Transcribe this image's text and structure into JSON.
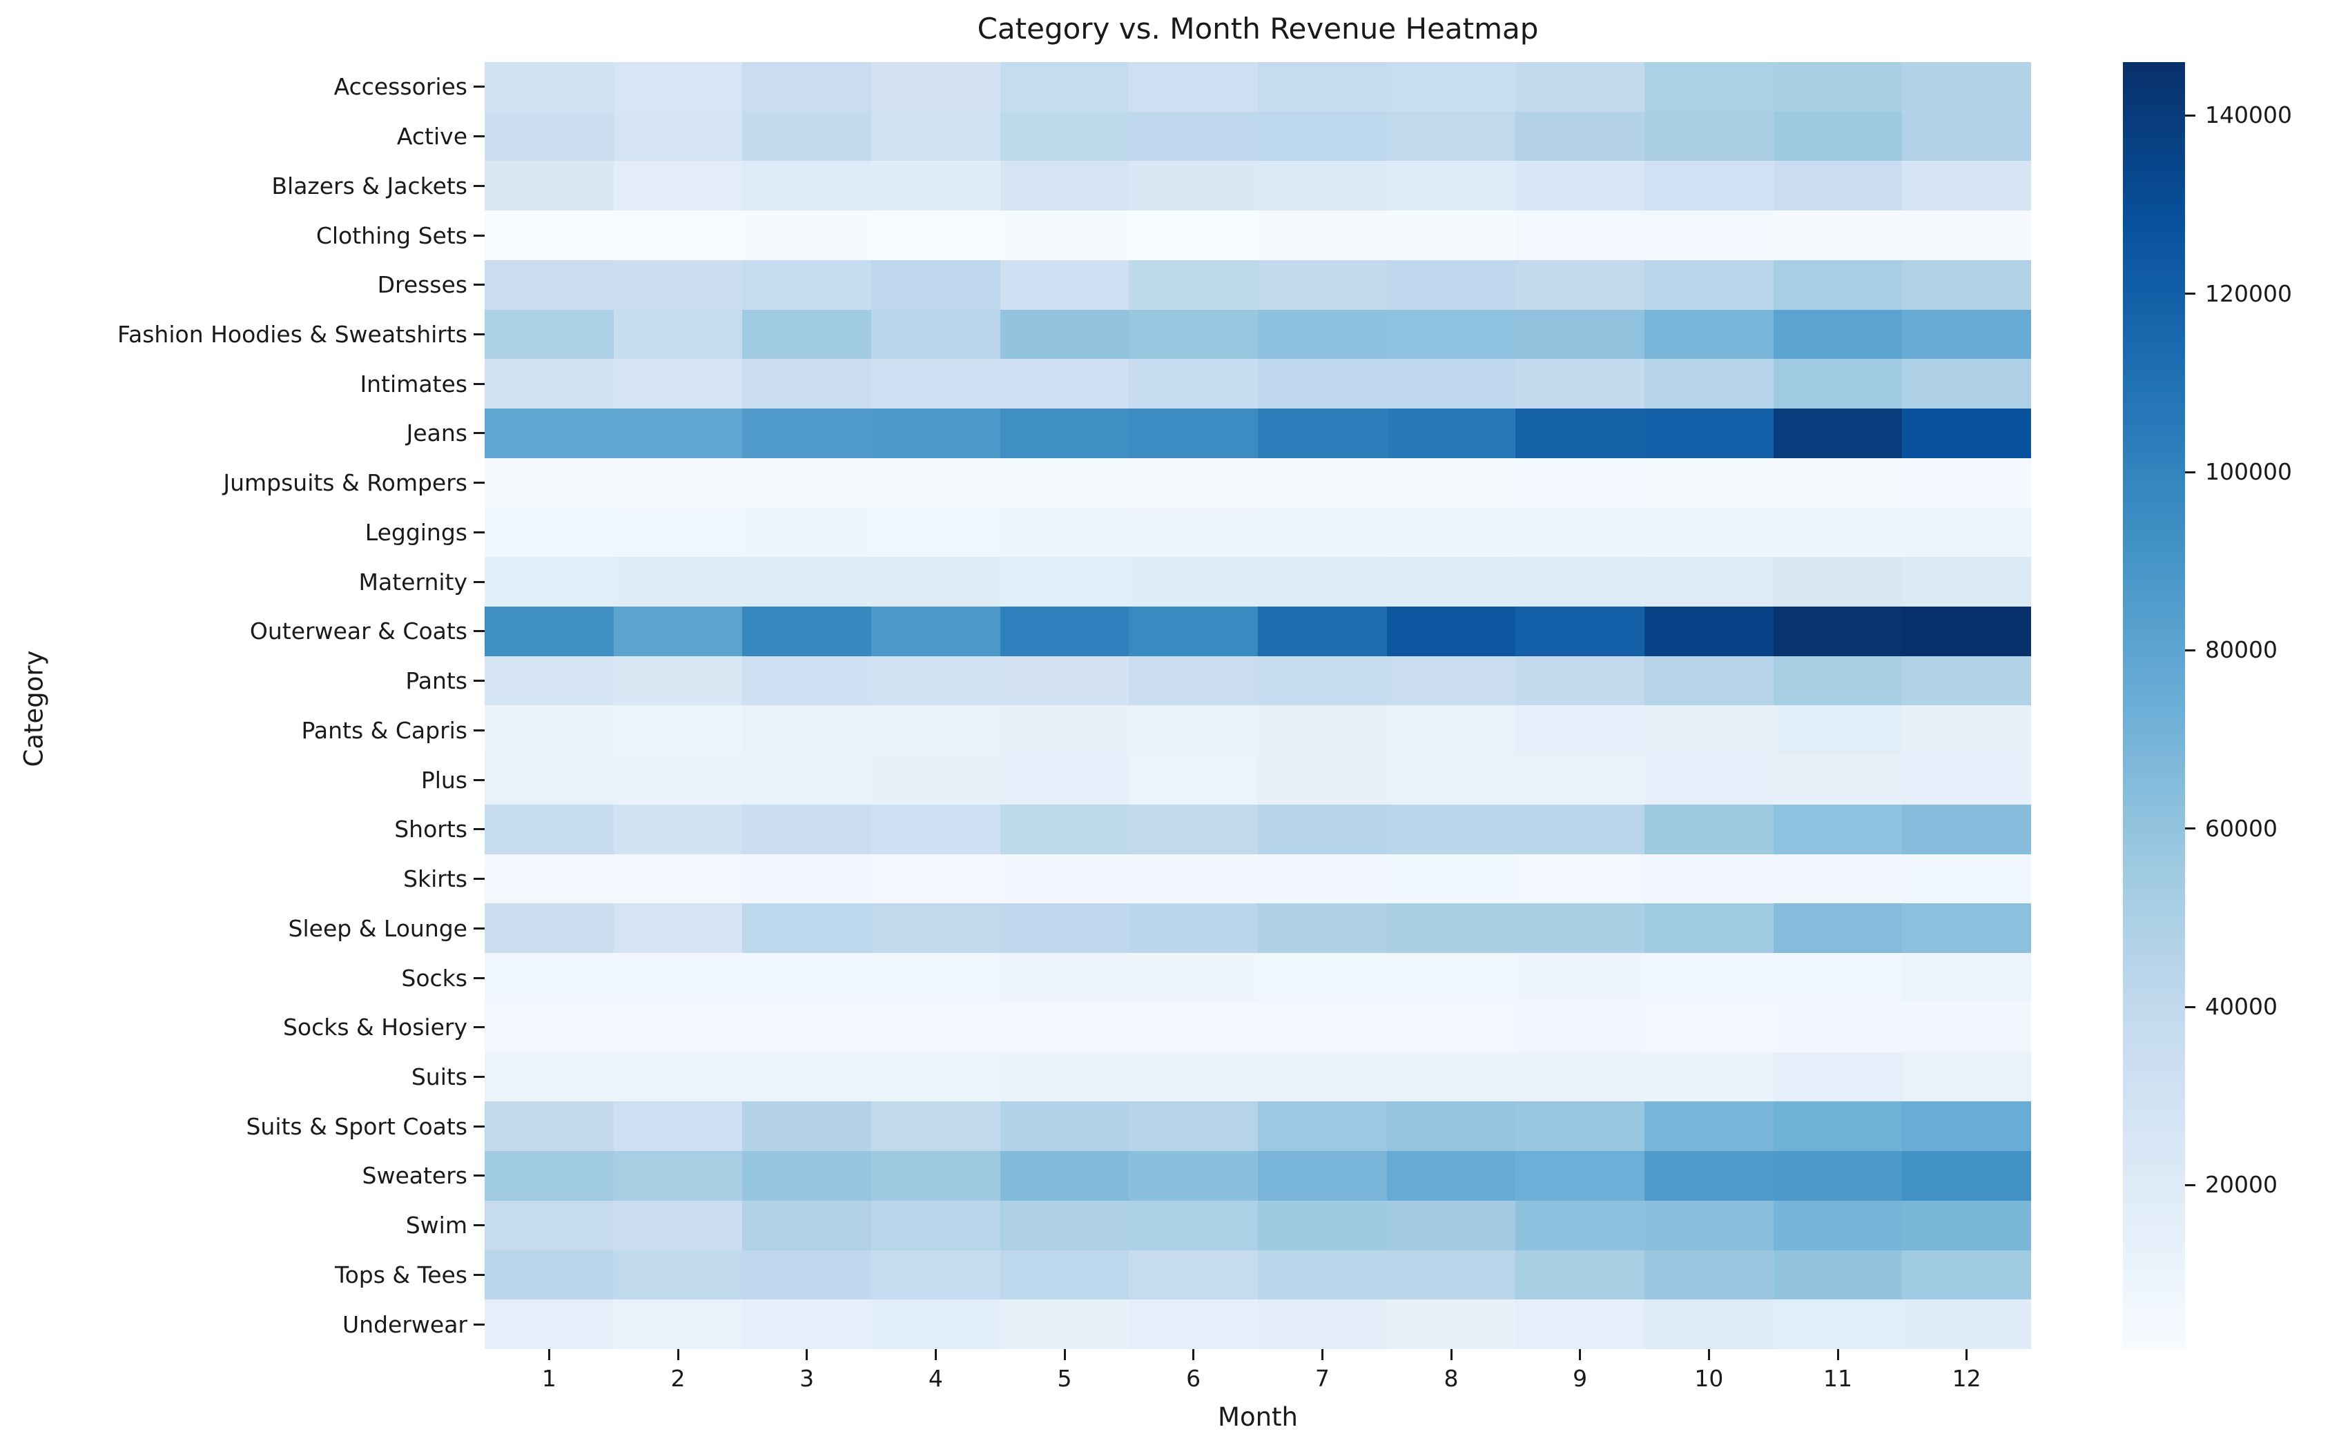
{
  "figure": {
    "text_color": "#1a1a1a",
    "background": "#ffffff"
  },
  "chart_data": {
    "type": "heatmap",
    "title": "Category vs. Month Revenue Heatmap",
    "xlabel": "Month",
    "ylabel": "Category",
    "colormap": "Blues",
    "colormap_anchors": [
      "#f7fbff",
      "#deebf7",
      "#c6dbef",
      "#9ecae1",
      "#6baed6",
      "#4292c6",
      "#2171b5",
      "#08519c",
      "#08306b"
    ],
    "grid": false,
    "legend_position": "right-colorbar",
    "colorbar_ticks": [
      20000,
      40000,
      60000,
      80000,
      100000,
      120000,
      140000
    ],
    "vmin": 1600,
    "vmax": 146000,
    "x": [
      1,
      2,
      3,
      4,
      5,
      6,
      7,
      8,
      9,
      10,
      11,
      12
    ],
    "categories": [
      "Accessories",
      "Active",
      "Blazers & Jackets",
      "Clothing Sets",
      "Dresses",
      "Fashion Hoodies & Sweatshirts",
      "Intimates",
      "Jeans",
      "Jumpsuits & Rompers",
      "Leggings",
      "Maternity",
      "Outerwear & Coats",
      "Pants",
      "Pants & Capris",
      "Plus",
      "Shorts",
      "Skirts",
      "Sleep & Lounge",
      "Socks",
      "Socks & Hosiery",
      "Suits",
      "Suits & Sport Coats",
      "Sweaters",
      "Swim",
      "Tops & Tees",
      "Underwear"
    ],
    "values": [
      [
        30400,
        25200,
        34900,
        28200,
        38100,
        32700,
        37300,
        35700,
        39100,
        49500,
        50900,
        46300
      ],
      [
        33500,
        27400,
        38600,
        30400,
        41300,
        40900,
        41800,
        40000,
        45900,
        50400,
        56100,
        47200
      ],
      [
        23700,
        17000,
        20600,
        18400,
        25900,
        22900,
        21400,
        20600,
        24400,
        31200,
        34900,
        26700
      ],
      [
        1700,
        2100,
        2400,
        1600,
        2900,
        2000,
        2500,
        2700,
        5500,
        4800,
        3000,
        3300
      ],
      [
        34900,
        33500,
        38100,
        40400,
        32000,
        41300,
        39100,
        40900,
        39500,
        44000,
        51700,
        47700
      ],
      [
        49500,
        36500,
        54900,
        42700,
        59600,
        57900,
        62100,
        61100,
        60700,
        69200,
        81000,
        75700
      ],
      [
        30400,
        25900,
        34200,
        32000,
        32700,
        37700,
        40900,
        40400,
        38600,
        45400,
        55400,
        48100
      ],
      [
        79000,
        78500,
        85900,
        87200,
        93400,
        95100,
        102600,
        105400,
        118500,
        119500,
        139000,
        127300
      ],
      [
        3000,
        3300,
        3600,
        3100,
        3800,
        3400,
        3900,
        3500,
        4200,
        4000,
        3700,
        4400
      ],
      [
        7000,
        7500,
        8000,
        7200,
        8300,
        7800,
        8500,
        8100,
        9000,
        8700,
        8400,
        9200
      ],
      [
        16500,
        18500,
        18000,
        18800,
        17500,
        18300,
        17900,
        19200,
        18600,
        19500,
        23000,
        21000
      ],
      [
        93400,
        80600,
        97700,
        87200,
        101500,
        96000,
        112700,
        125000,
        119500,
        136100,
        144400,
        146000
      ],
      [
        26700,
        22900,
        32000,
        29700,
        28200,
        34900,
        38100,
        34900,
        39100,
        45000,
        51300,
        46800
      ],
      [
        11000,
        10500,
        12000,
        11600,
        12400,
        11900,
        12700,
        12300,
        13600,
        13100,
        16500,
        14200
      ],
      [
        11500,
        10800,
        12000,
        13200,
        13800,
        10300,
        12500,
        12100,
        11700,
        13500,
        12800,
        14000
      ],
      [
        36500,
        29700,
        34200,
        32000,
        41300,
        40000,
        45400,
        43200,
        42700,
        56100,
        61100,
        64600
      ],
      [
        5000,
        5300,
        5600,
        5100,
        5800,
        6200,
        6000,
        6400,
        5500,
        5900,
        6100,
        7000
      ],
      [
        33500,
        27400,
        41800,
        40000,
        40900,
        42200,
        48100,
        50400,
        50000,
        54900,
        64500,
        62000
      ],
      [
        7200,
        6800,
        7000,
        7500,
        8200,
        7800,
        7300,
        7600,
        8000,
        6900,
        7100,
        8500
      ],
      [
        4500,
        4800,
        5000,
        4600,
        5200,
        4900,
        5400,
        5100,
        5600,
        5300,
        5800,
        6000
      ],
      [
        10000,
        9500,
        10500,
        10200,
        11000,
        10700,
        11300,
        10900,
        11600,
        11200,
        13500,
        12000
      ],
      [
        39500,
        32700,
        45900,
        40000,
        47200,
        45000,
        56400,
        58900,
        57500,
        68500,
        72100,
        74800
      ],
      [
        54900,
        51300,
        58600,
        56100,
        66000,
        62500,
        68500,
        75700,
        73000,
        86300,
        87000,
        92500
      ],
      [
        37300,
        34200,
        46800,
        43600,
        48100,
        49500,
        55800,
        53600,
        61400,
        62500,
        69900,
        68200
      ],
      [
        42700,
        40000,
        40900,
        38100,
        41800,
        37300,
        43600,
        43200,
        50900,
        56800,
        59600,
        54500
      ],
      [
        14800,
        11900,
        15500,
        17700,
        12600,
        14800,
        17000,
        12600,
        15500,
        20600,
        17700,
        18400
      ]
    ]
  }
}
